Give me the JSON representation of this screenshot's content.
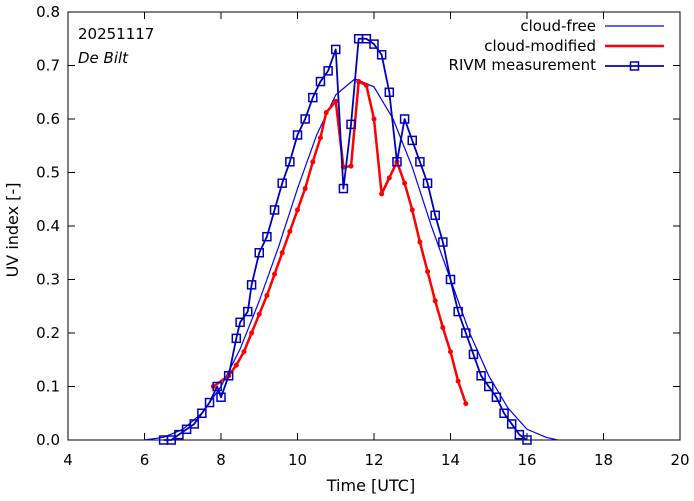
{
  "chart_data": {
    "type": "line",
    "title": "",
    "xlabel": "Time  [UTC]",
    "ylabel": "UV index  [-]",
    "xlim": [
      4,
      20
    ],
    "ylim": [
      0,
      0.8
    ],
    "xticks": [
      4,
      6,
      8,
      10,
      12,
      14,
      16,
      18,
      20
    ],
    "yticks": [
      0.0,
      0.1,
      0.2,
      0.3,
      0.4,
      0.5,
      0.6,
      0.7,
      0.8
    ],
    "xtick_labels": [
      "4",
      "6",
      "8",
      "10",
      "12",
      "14",
      "16",
      "18",
      "20"
    ],
    "ytick_labels": [
      "0.0",
      "0.1",
      "0.2",
      "0.3",
      "0.4",
      "0.5",
      "0.6",
      "0.7",
      "0.8"
    ],
    "grid": false,
    "legend_position": "top-right",
    "annotations": {
      "date": "20251117",
      "location": "De Bilt"
    },
    "series": [
      {
        "name": "cloud-free",
        "color": "#0000ff",
        "style": "thin-line",
        "x": [
          6.0,
          6.5,
          7.0,
          7.5,
          8.0,
          8.5,
          9.0,
          9.5,
          10.0,
          10.5,
          11.0,
          11.5,
          12.0,
          12.5,
          13.0,
          13.5,
          14.0,
          14.5,
          15.0,
          15.5,
          16.0,
          16.5,
          16.8
        ],
        "y": [
          0.0,
          0.005,
          0.02,
          0.05,
          0.1,
          0.17,
          0.26,
          0.36,
          0.47,
          0.57,
          0.645,
          0.675,
          0.66,
          0.6,
          0.51,
          0.4,
          0.3,
          0.2,
          0.12,
          0.06,
          0.02,
          0.005,
          0.0
        ]
      },
      {
        "name": "cloud-modified",
        "color": "#ff0000",
        "style": "thick-line-dots",
        "x": [
          7.8,
          8.2,
          8.4,
          8.6,
          8.8,
          9.0,
          9.2,
          9.4,
          9.6,
          9.8,
          10.0,
          10.2,
          10.4,
          10.6,
          10.75,
          11.0,
          11.2,
          11.4,
          11.6,
          11.8,
          12.0,
          12.2,
          12.4,
          12.6,
          12.8,
          13.0,
          13.2,
          13.4,
          13.6,
          13.8,
          14.0,
          14.2,
          14.4
        ],
        "y": [
          0.1,
          0.12,
          0.14,
          0.165,
          0.2,
          0.235,
          0.27,
          0.31,
          0.35,
          0.39,
          0.43,
          0.47,
          0.52,
          0.565,
          0.612,
          0.633,
          0.51,
          0.512,
          0.67,
          0.663,
          0.6,
          0.46,
          0.49,
          0.52,
          0.48,
          0.43,
          0.37,
          0.315,
          0.26,
          0.21,
          0.165,
          0.11,
          0.068
        ]
      },
      {
        "name": "RIVM measurement",
        "color": "#0000bb",
        "style": "line-squares",
        "x": [
          6.5,
          6.7,
          6.9,
          7.1,
          7.3,
          7.5,
          7.7,
          7.9,
          8.0,
          8.2,
          8.4,
          8.5,
          8.7,
          8.8,
          9.0,
          9.2,
          9.4,
          9.6,
          9.8,
          10.0,
          10.2,
          10.4,
          10.6,
          10.8,
          11.0,
          11.2,
          11.4,
          11.6,
          11.8,
          12.0,
          12.2,
          12.4,
          12.6,
          12.8,
          13.0,
          13.2,
          13.4,
          13.6,
          13.8,
          14.0,
          14.2,
          14.4,
          14.6,
          14.8,
          15.0,
          15.2,
          15.4,
          15.6,
          15.8,
          16.0
        ],
        "y": [
          0.0,
          0.0,
          0.01,
          0.02,
          0.03,
          0.05,
          0.07,
          0.1,
          0.08,
          0.12,
          0.19,
          0.22,
          0.24,
          0.29,
          0.35,
          0.38,
          0.43,
          0.48,
          0.52,
          0.57,
          0.6,
          0.64,
          0.67,
          0.69,
          0.73,
          0.47,
          0.59,
          0.75,
          0.75,
          0.74,
          0.72,
          0.65,
          0.52,
          0.6,
          0.56,
          0.52,
          0.48,
          0.42,
          0.37,
          0.3,
          0.24,
          0.2,
          0.16,
          0.12,
          0.1,
          0.08,
          0.05,
          0.03,
          0.01,
          0.0
        ]
      }
    ]
  }
}
